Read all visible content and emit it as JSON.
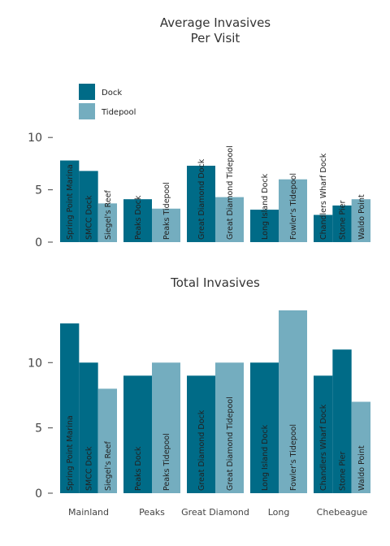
{
  "colors": {
    "dock": "#006b87",
    "tidepool": "#74adbf"
  },
  "chart_data": [
    {
      "type": "bar",
      "title_lines": [
        "Average Invasives",
        "Per Visit"
      ],
      "ylim": [
        0,
        12.5
      ],
      "yticks": [
        0,
        5,
        10
      ],
      "legend": [
        {
          "key": "dock",
          "label": "Dock"
        },
        {
          "key": "tidepool",
          "label": "Tidepool"
        }
      ],
      "bars": [
        {
          "group": "Mainland",
          "label": "Spring Point Marina",
          "type": "dock",
          "value": 7.8
        },
        {
          "group": "Mainland",
          "label": "SMCC Dock",
          "type": "dock",
          "value": 6.8
        },
        {
          "group": "Mainland",
          "label": "Siegel's Reef",
          "type": "tidepool",
          "value": 3.7
        },
        {
          "group": "Peaks",
          "label": "Peaks Dock",
          "type": "dock",
          "value": 4.1
        },
        {
          "group": "Peaks",
          "label": "Peaks Tidepool",
          "type": "tidepool",
          "value": 3.2
        },
        {
          "group": "Great Diamond",
          "label": "Great Diamond Dock",
          "type": "dock",
          "value": 7.3
        },
        {
          "group": "Great Diamond",
          "label": "Great Diamond Tidepool",
          "type": "tidepool",
          "value": 4.3
        },
        {
          "group": "Long",
          "label": "Long Island Dock",
          "type": "dock",
          "value": 3.1
        },
        {
          "group": "Long",
          "label": "Fowler's Tidepool",
          "type": "tidepool",
          "value": 6.0
        },
        {
          "group": "Chebeague",
          "label": "Chandlers Wharf Dock",
          "type": "dock",
          "value": 2.6
        },
        {
          "group": "Chebeague",
          "label": "Stone Pier",
          "type": "dock",
          "value": 3.5
        },
        {
          "group": "Chebeague",
          "label": "Waldo Point",
          "type": "tidepool",
          "value": 4.1
        }
      ]
    },
    {
      "type": "bar",
      "title_lines": [
        "Total Invasives"
      ],
      "ylim": [
        0,
        14
      ],
      "yticks": [
        0,
        5,
        10
      ],
      "bars": [
        {
          "group": "Mainland",
          "label": "Spring Point Marina",
          "type": "dock",
          "value": 13
        },
        {
          "group": "Mainland",
          "label": "SMCC Dock",
          "type": "dock",
          "value": 10
        },
        {
          "group": "Mainland",
          "label": "Siegel's Reef",
          "type": "tidepool",
          "value": 8
        },
        {
          "group": "Peaks",
          "label": "Peaks Dock",
          "type": "dock",
          "value": 9
        },
        {
          "group": "Peaks",
          "label": "Peaks Tidepool",
          "type": "tidepool",
          "value": 10
        },
        {
          "group": "Great Diamond",
          "label": "Great Diamond Dock",
          "type": "dock",
          "value": 9
        },
        {
          "group": "Great Diamond",
          "label": "Great Diamond Tidepool",
          "type": "tidepool",
          "value": 10
        },
        {
          "group": "Long",
          "label": "Long Island Dock",
          "type": "dock",
          "value": 10
        },
        {
          "group": "Long",
          "label": "Fowler's Tidepool",
          "type": "tidepool",
          "value": 14
        },
        {
          "group": "Chebeague",
          "label": "Chandlers Wharf Dock",
          "type": "dock",
          "value": 9
        },
        {
          "group": "Chebeague",
          "label": "Stone Pier",
          "type": "dock",
          "value": 11
        },
        {
          "group": "Chebeague",
          "label": "Waldo Point",
          "type": "tidepool",
          "value": 7
        }
      ]
    }
  ],
  "groups": [
    "Mainland",
    "Peaks",
    "Great Diamond",
    "Long",
    "Chebeague"
  ]
}
